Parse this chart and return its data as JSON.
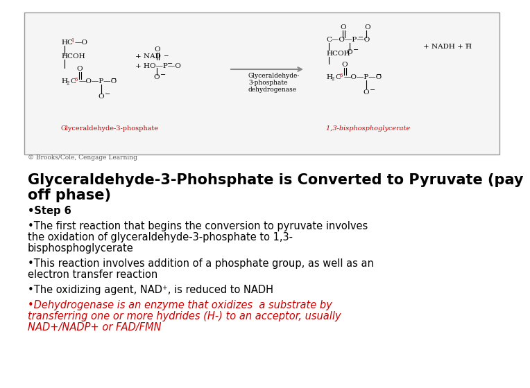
{
  "bg_color": "#ffffff",
  "title_line1": "Glyceraldehyde-3-Phohsphate is Converted to Pyruvate (pay",
  "title_line2": "off phase)",
  "title_fontsize": 15,
  "title_color": "#000000",
  "bullet_items": [
    {
      "text": "•Step 6",
      "color": "#000000",
      "bold": true,
      "italic": false,
      "underline": false,
      "fontsize": 10.5
    },
    {
      "text": "•The first reaction that begins the conversion to pyruvate involves\nthe oxidation of glyceraldehyde-3-phosphate to 1,3-\nbisphosphoglycerate",
      "color": "#000000",
      "bold": false,
      "italic": false,
      "underline": false,
      "fontsize": 10.5
    },
    {
      "text": "•This reaction involves addition of a phosphate group, as well as an\nelectron transfer reaction",
      "color": "#000000",
      "bold": false,
      "italic": false,
      "underline": false,
      "fontsize": 10.5
    },
    {
      "text": "•The oxidizing agent, NAD⁺, is reduced to NADH",
      "color": "#000000",
      "bold": false,
      "italic": false,
      "underline": false,
      "fontsize": 10.5
    },
    {
      "text": "•Dehydrogenase is an enzyme that oxidizes  a substrate by\ntransferring one or more hydrides (H-) to an acceptor, usually\nNAD+/NADP+ or FAD/FMN",
      "color": "#cc0000",
      "bold": false,
      "italic": true,
      "underline": true,
      "fontsize": 10.5
    }
  ],
  "copyright_text": "© Brooks/Cole, Cengage Learning",
  "copyright_fontsize": 6.5,
  "outer_box_color": "#999999",
  "diagram_bg": "#f5f5f5"
}
